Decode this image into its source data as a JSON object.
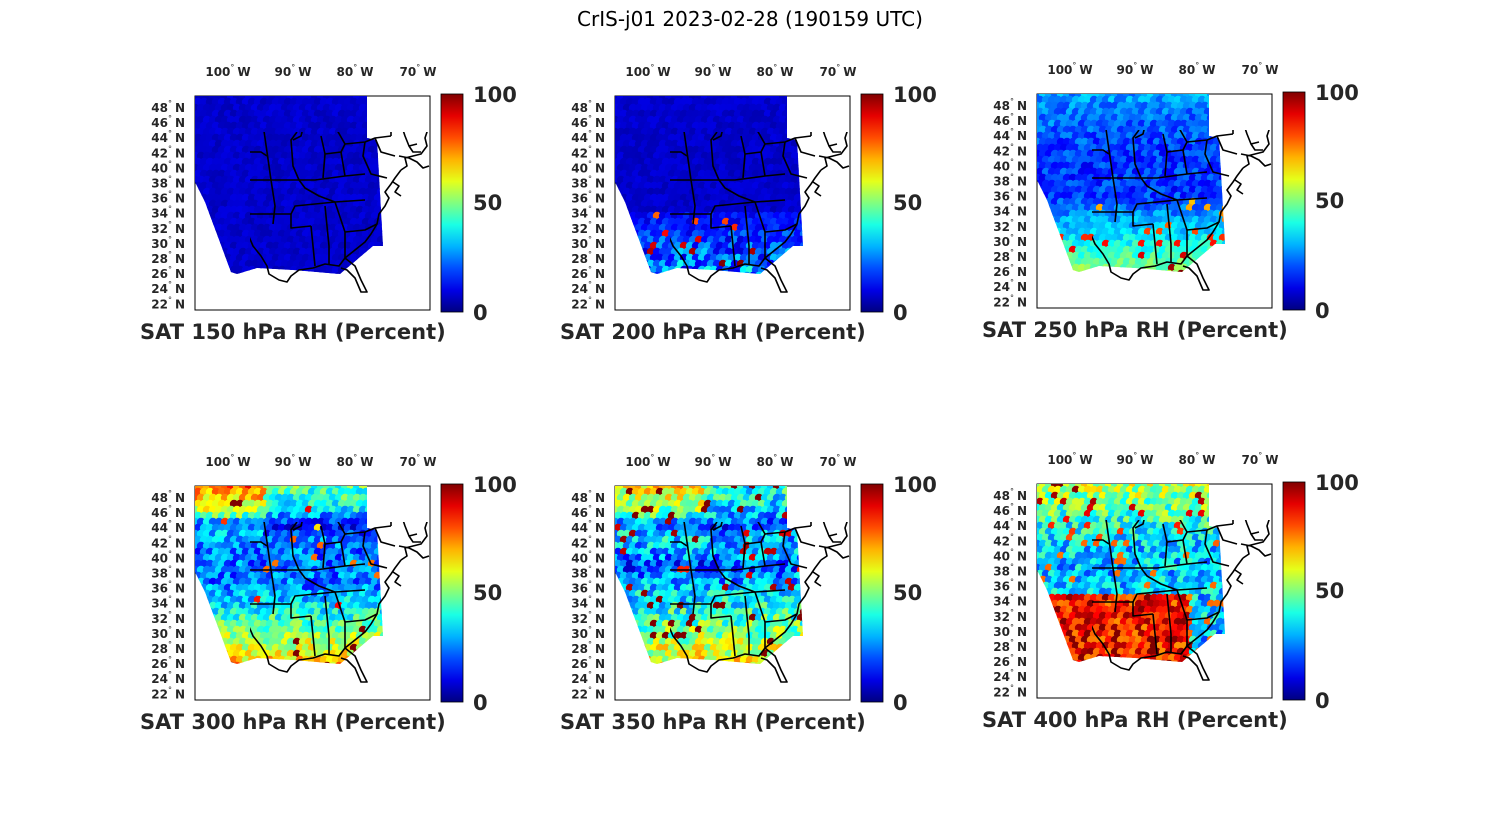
{
  "figure_title": "CrIS-j01 2023-02-28 (190159 UTC)",
  "colorbar": {
    "ticks": [
      "100",
      "50",
      "0"
    ],
    "colormap": "jet",
    "min": 0,
    "max": 100
  },
  "lon_labels": [
    "100",
    "W",
    "90",
    "W",
    "80",
    "W",
    "70",
    "W"
  ],
  "lat_labels": [
    "48",
    "46",
    "44",
    "42",
    "40",
    "38",
    "36",
    "34",
    "32",
    "30",
    "28",
    "26",
    "24",
    "22"
  ],
  "lat_hemisphere": "N",
  "panels": [
    {
      "title": "SAT 150 hPa RH (Percent)",
      "level": "150"
    },
    {
      "title": "SAT 200 hPa RH (Percent)",
      "level": "200"
    },
    {
      "title": "SAT 250 hPa RH (Percent)",
      "level": "250"
    },
    {
      "title": "SAT 300 hPa RH (Percent)",
      "level": "300"
    },
    {
      "title": "SAT 350 hPa RH (Percent)",
      "level": "350"
    },
    {
      "title": "SAT 400 hPa RH (Percent)",
      "level": "400"
    }
  ]
}
